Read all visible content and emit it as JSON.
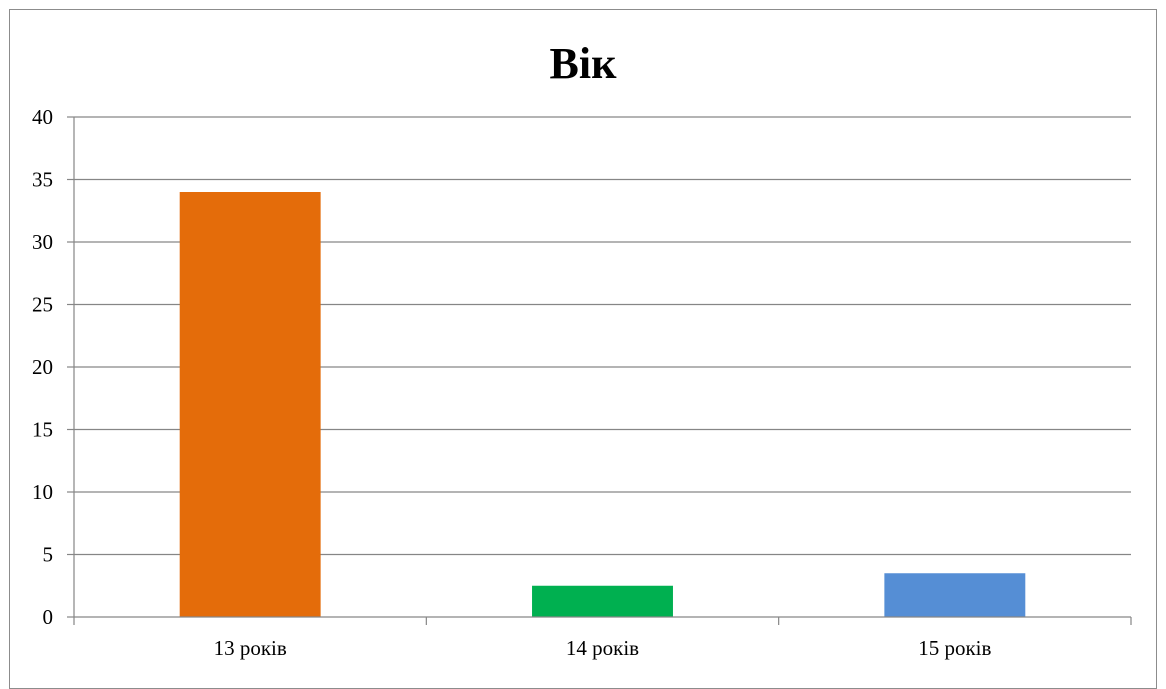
{
  "chart_data": {
    "type": "bar",
    "title": "Вік",
    "xlabel": "",
    "ylabel": "",
    "categories": [
      "13 років",
      "14 років",
      "15 років"
    ],
    "values": [
      34,
      2.5,
      3.5
    ],
    "colors": [
      "#e46c0a",
      "#00b050",
      "#558ed5"
    ],
    "ylim": [
      0,
      40
    ],
    "yticks": [
      0,
      5,
      10,
      15,
      20,
      25,
      30,
      35,
      40
    ],
    "grid": true,
    "legend": "none"
  }
}
